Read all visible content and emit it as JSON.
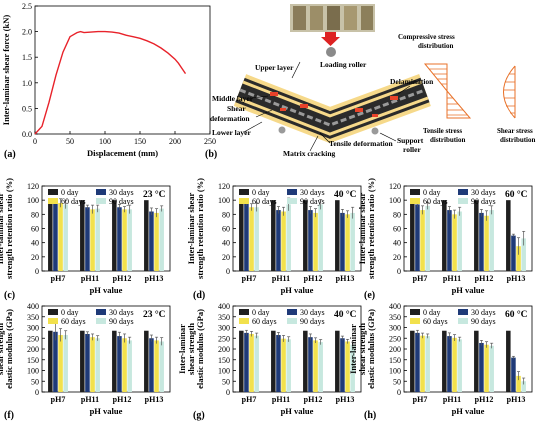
{
  "chart_data": [
    {
      "id": "a",
      "type": "line",
      "panel_label": "(a)",
      "ylabel": "Inter-laminar shear force (kN)",
      "xlabel": "Displacement (mm)",
      "xlim": [
        0,
        250
      ],
      "ylim": [
        0,
        2.5
      ],
      "xticks": [
        "0",
        "50",
        "100",
        "150",
        "200",
        "250"
      ],
      "yticks": [
        "0.0",
        "0.5",
        "1.0",
        "1.5",
        "2.0",
        "2.5"
      ],
      "color": "#e8222a",
      "x": [
        0,
        10,
        20,
        30,
        40,
        50,
        60,
        65,
        70,
        80,
        90,
        100,
        110,
        120,
        130,
        140,
        150,
        160,
        170,
        180,
        190,
        200,
        205,
        210,
        215
      ],
      "y": [
        0,
        0.15,
        0.62,
        1.15,
        1.6,
        1.9,
        1.98,
        2.0,
        1.98,
        1.99,
        2.0,
        2.0,
        1.99,
        1.97,
        1.93,
        1.9,
        1.87,
        1.82,
        1.76,
        1.68,
        1.58,
        1.46,
        1.38,
        1.28,
        1.18
      ]
    },
    {
      "id": "c",
      "type": "bar",
      "panel_label": "(c)",
      "temperature": "23 °C",
      "ylabel": "Inter-laminar shear strength retention ratio (%)",
      "xlabel": "pH value",
      "categories": [
        "pH7",
        "pH11",
        "pH12",
        "pH13"
      ],
      "ylim": [
        0,
        120
      ],
      "yticks": [
        "0",
        "20",
        "40",
        "60",
        "80",
        "100",
        "120"
      ],
      "series": [
        {
          "name": "0 day",
          "values": [
            100,
            100,
            100,
            100
          ],
          "errors": [
            0,
            0,
            0,
            0
          ]
        },
        {
          "name": "30 days",
          "values": [
            98,
            90,
            90,
            84
          ],
          "errors": [
            3,
            3,
            4,
            5
          ]
        },
        {
          "name": "60 days",
          "values": [
            96,
            87,
            87,
            82
          ],
          "errors": [
            6,
            6,
            4,
            6
          ]
        },
        {
          "name": "90 days",
          "values": [
            94,
            88,
            87,
            88
          ],
          "errors": [
            6,
            5,
            6,
            4
          ]
        }
      ]
    },
    {
      "id": "d",
      "type": "bar",
      "panel_label": "(d)",
      "temperature": "40 °C",
      "ylabel": "Inter-laminar shear strength retention ratio (%)",
      "xlabel": "pH value",
      "categories": [
        "pH7",
        "pH11",
        "pH12",
        "pH13"
      ],
      "ylim": [
        0,
        120
      ],
      "yticks": [
        "0",
        "20",
        "40",
        "60",
        "80",
        "100",
        "120"
      ],
      "series": [
        {
          "name": "0 day",
          "values": [
            100,
            100,
            100,
            100
          ],
          "errors": [
            0,
            0,
            0,
            0
          ]
        },
        {
          "name": "30 days",
          "values": [
            96,
            86,
            86,
            82
          ],
          "errors": [
            4,
            5,
            5,
            5
          ]
        },
        {
          "name": "60 days",
          "values": [
            90,
            84,
            82,
            80
          ],
          "errors": [
            5,
            6,
            6,
            5
          ]
        },
        {
          "name": "90 days",
          "values": [
            90,
            94,
            94,
            82
          ],
          "errors": [
            6,
            9,
            7,
            8
          ]
        }
      ]
    },
    {
      "id": "e",
      "type": "bar",
      "panel_label": "(e)",
      "temperature": "60 °C",
      "ylabel": "Inter-laminar shear strength retention ratio (%)",
      "xlabel": "pH value",
      "categories": [
        "pH7",
        "pH11",
        "pH12",
        "pH13"
      ],
      "ylim": [
        0,
        120
      ],
      "yticks": [
        "0",
        "20",
        "40",
        "60",
        "80",
        "100",
        "120"
      ],
      "series": [
        {
          "name": "0 day",
          "values": [
            100,
            100,
            100,
            100
          ],
          "errors": [
            0,
            0,
            0,
            0
          ]
        },
        {
          "name": "30 days",
          "values": [
            94,
            86,
            82,
            50
          ],
          "errors": [
            4,
            5,
            5,
            2
          ]
        },
        {
          "name": "60 days",
          "values": [
            86,
            80,
            78,
            35
          ],
          "errors": [
            6,
            6,
            7,
            12
          ]
        },
        {
          "name": "90 days",
          "values": [
            92,
            84,
            86,
            46
          ],
          "errors": [
            5,
            6,
            6,
            10
          ]
        }
      ]
    },
    {
      "id": "f",
      "type": "bar",
      "panel_label": "(f)",
      "temperature": "23 °C",
      "ylabel": "Inter-laminar shear strength elastic modulus (GPa)",
      "xlabel": "pH value",
      "categories": [
        "pH7",
        "pH11",
        "pH12",
        "pH13"
      ],
      "ylim": [
        0,
        400
      ],
      "yticks": [
        "0",
        "50",
        "100",
        "150",
        "200",
        "250",
        "300",
        "350",
        "400"
      ],
      "series": [
        {
          "name": "0 day",
          "values": [
            285,
            285,
            285,
            285
          ],
          "errors": [
            0,
            0,
            0,
            0
          ]
        },
        {
          "name": "30 days",
          "values": [
            280,
            270,
            260,
            250
          ],
          "errors": [
            40,
            10,
            18,
            15
          ]
        },
        {
          "name": "60 days",
          "values": [
            265,
            255,
            250,
            240
          ],
          "errors": [
            30,
            15,
            20,
            15
          ]
        },
        {
          "name": "90 days",
          "values": [
            265,
            250,
            240,
            235
          ],
          "errors": [
            20,
            12,
            15,
            18
          ]
        }
      ]
    },
    {
      "id": "g",
      "type": "bar",
      "panel_label": "(g)",
      "temperature": "40 °C",
      "ylabel": "Inter-laminar shear strength elastic modulus (GPa)",
      "xlabel": "pH value",
      "categories": [
        "pH7",
        "pH11",
        "pH12",
        "pH13"
      ],
      "ylim": [
        0,
        400
      ],
      "yticks": [
        "0",
        "50",
        "100",
        "150",
        "200",
        "250",
        "300",
        "350",
        "400"
      ],
      "series": [
        {
          "name": "0 day",
          "values": [
            285,
            285,
            285,
            285
          ],
          "errors": [
            0,
            0,
            0,
            0
          ]
        },
        {
          "name": "30 days",
          "values": [
            275,
            265,
            255,
            250
          ],
          "errors": [
            12,
            12,
            15,
            10
          ]
        },
        {
          "name": "60 days",
          "values": [
            270,
            248,
            240,
            235
          ],
          "errors": [
            12,
            15,
            12,
            10
          ]
        },
        {
          "name": "90 days",
          "values": [
            262,
            245,
            232,
            220
          ],
          "errors": [
            12,
            12,
            12,
            12
          ]
        }
      ]
    },
    {
      "id": "h",
      "type": "bar",
      "panel_label": "(h)",
      "temperature": "60 °C",
      "ylabel": "Inter-laminar shear strength elastic modulus (GPa)",
      "xlabel": "pH value",
      "categories": [
        "pH7",
        "pH11",
        "pH12",
        "pH13"
      ],
      "ylim": [
        0,
        400
      ],
      "yticks": [
        "0",
        "50",
        "100",
        "150",
        "200",
        "250",
        "300",
        "350",
        "400"
      ],
      "series": [
        {
          "name": "0 day",
          "values": [
            285,
            285,
            285,
            285
          ],
          "errors": [
            0,
            0,
            0,
            0
          ]
        },
        {
          "name": "30 days",
          "values": [
            275,
            260,
            228,
            160
          ],
          "errors": [
            12,
            15,
            12,
            6
          ]
        },
        {
          "name": "60 days",
          "values": [
            262,
            252,
            220,
            75
          ],
          "errors": [
            12,
            15,
            14,
            20
          ]
        },
        {
          "name": "90 days",
          "values": [
            260,
            245,
            215,
            50
          ],
          "errors": [
            10,
            10,
            12,
            15
          ]
        }
      ]
    }
  ],
  "series_colors": [
    "#1f1f1f",
    "#1f3a78",
    "#f2e14c",
    "#c7e8df"
  ],
  "diagram": {
    "panel_label": "(b)",
    "labels": {
      "loading_roller": "Loading roller",
      "upper_layer": "Upper layer",
      "middle_layer": "Middle layer",
      "shear_deformation": "Shear deformation",
      "lower_layer": "Lower layer",
      "delamination": "Delamination",
      "matrix_cracking": "Matrix cracking",
      "tensile_deformation": "Tensile deformation",
      "support_roller": "Support roller",
      "compressive": "Compressive stress distribution",
      "tensile": "Tensile stress distribution",
      "shear": "Shear stress distribution"
    },
    "colors": {
      "layer_dark": "#2b2b2b",
      "layer_light": "#f6d98a",
      "accent": "#e8432a",
      "stress": "#e8722a"
    }
  }
}
